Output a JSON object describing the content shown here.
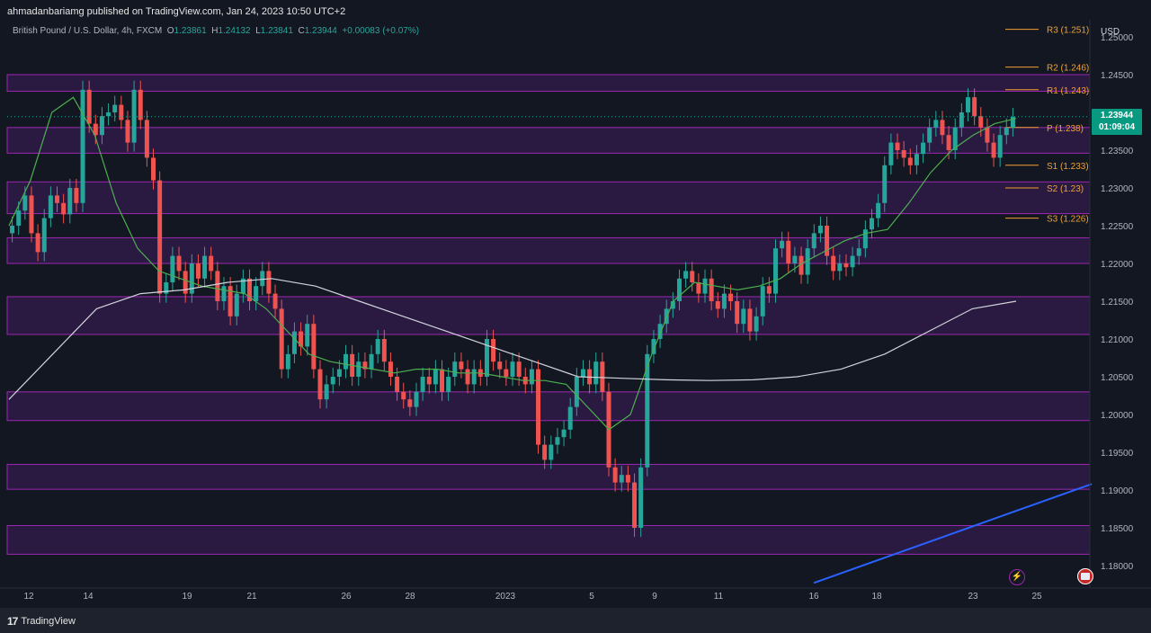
{
  "header": {
    "published_by": "ahmadanbariamg published on TradingView.com, Jan 24, 2023 10:50 UTC+2",
    "symbol": "British Pound / U.S. Dollar, 4h, FXCM",
    "o_label": "O",
    "o_value": "1.23861",
    "h_label": "H",
    "h_value": "1.24132",
    "l_label": "L",
    "l_value": "1.23841",
    "c_label": "C",
    "c_value": "1.23944",
    "change": "+0.00083 (+0.07%)"
  },
  "price_axis": {
    "currency": "USD",
    "last_price": "1.23944",
    "countdown": "01:09:04"
  },
  "footer": {
    "brand": "TradingView",
    "logo": "17"
  },
  "icons": {
    "alert": "bolt-icon",
    "flag": "uk-flag-icon"
  },
  "colors": {
    "background": "#131722",
    "bull": "#26a69a",
    "bear": "#ef5350",
    "zone_fill": "#2d1b45",
    "zone_border": "#9c27b0",
    "pivot": "#f0a030",
    "ma_fast": "#4caf50",
    "ma_slow": "#d1d4dc",
    "trendline": "#2962ff"
  },
  "chart_data": {
    "type": "candlestick",
    "title": "British Pound / U.S. Dollar, 4h, FXCM",
    "y_ticks": [
      "1.25000",
      "1.24500",
      "1.24000",
      "1.23500",
      "1.23000",
      "1.22500",
      "1.22000",
      "1.21500",
      "1.21000",
      "1.20500",
      "1.20000",
      "1.19500",
      "1.19000",
      "1.18500",
      "1.18000"
    ],
    "ylim": [
      1.1775,
      1.2515
    ],
    "x_ticks": [
      "12",
      "14",
      "19",
      "21",
      "26",
      "28",
      "2023",
      "5",
      "9",
      "11",
      "16",
      "18",
      "23",
      "25"
    ],
    "zones": [
      [
        1.2428,
        1.245
      ],
      [
        1.2346,
        1.238
      ],
      [
        1.2266,
        1.2308
      ],
      [
        1.22,
        1.2234
      ],
      [
        1.2106,
        1.2156
      ],
      [
        1.1992,
        1.203
      ],
      [
        1.1901,
        1.1934
      ],
      [
        1.1815,
        1.1853
      ]
    ],
    "pivots": [
      {
        "label": "R3 (1.251)",
        "value": 1.251
      },
      {
        "label": "R2 (1.246)",
        "value": 1.246
      },
      {
        "label": "R1 (1.243)",
        "value": 1.243
      },
      {
        "label": "P (1.238)",
        "value": 1.238
      },
      {
        "label": "S1 (1.233)",
        "value": 1.233
      },
      {
        "label": "S2 (1.23)",
        "value": 1.23
      },
      {
        "label": "S3 (1.226)",
        "value": 1.226
      }
    ],
    "close_series": [
      {
        "name": "GBPUSD 4h close (approx)",
        "values": [
          1.225,
          1.227,
          1.229,
          1.224,
          1.2215,
          1.226,
          1.229,
          1.228,
          1.2265,
          1.23,
          1.228,
          1.243,
          1.2385,
          1.237,
          1.2395,
          1.24,
          1.241,
          1.239,
          1.236,
          1.243,
          1.239,
          1.234,
          1.231,
          1.216,
          1.2175,
          1.221,
          1.219,
          1.216,
          1.22,
          1.218,
          1.221,
          1.219,
          1.215,
          1.217,
          1.213,
          1.216,
          1.218,
          1.215,
          1.217,
          1.219,
          1.216,
          1.214,
          1.206,
          1.208,
          1.211,
          1.209,
          1.212,
          1.206,
          1.202,
          1.204,
          1.205,
          1.206,
          1.208,
          1.205,
          1.207,
          1.206,
          1.208,
          1.21,
          1.207,
          1.205,
          1.203,
          1.202,
          1.201,
          1.203,
          1.205,
          1.204,
          1.206,
          1.203,
          1.205,
          1.207,
          1.206,
          1.204,
          1.206,
          1.205,
          1.21,
          1.207,
          1.206,
          1.205,
          1.207,
          1.205,
          1.204,
          1.206,
          1.196,
          1.194,
          1.196,
          1.197,
          1.198,
          1.201,
          1.205,
          1.206,
          1.204,
          1.207,
          1.203,
          1.193,
          1.191,
          1.192,
          1.191,
          1.185,
          1.193,
          1.208,
          1.21,
          1.212,
          1.214,
          1.215,
          1.218,
          1.219,
          1.2175,
          1.216,
          1.218,
          1.215,
          1.214,
          1.216,
          1.215,
          1.212,
          1.214,
          1.211,
          1.213,
          1.217,
          1.216,
          1.222,
          1.223,
          1.22,
          1.221,
          1.2185,
          1.222,
          1.224,
          1.225,
          1.221,
          1.219,
          1.22,
          1.2195,
          1.221,
          1.222,
          1.2245,
          1.226,
          1.228,
          1.233,
          1.236,
          1.235,
          1.234,
          1.233,
          1.2345,
          1.236,
          1.238,
          1.239,
          1.237,
          1.235,
          1.238,
          1.24,
          1.242,
          1.2395,
          1.238,
          1.236,
          1.234,
          1.237,
          1.238,
          1.2394
        ]
      },
      {
        "name": "MA fast (approx)",
        "values": [
          1.225,
          1.231,
          1.24,
          1.242,
          1.237,
          1.228,
          1.222,
          1.219,
          1.218,
          1.217,
          1.2165,
          1.216,
          1.214,
          1.211,
          1.208,
          1.207,
          1.2065,
          1.206,
          1.2055,
          1.206,
          1.206,
          1.2055,
          1.2055,
          1.205,
          1.2045,
          1.2045,
          1.204,
          1.201,
          1.198,
          1.2,
          1.208,
          1.215,
          1.2175,
          1.217,
          1.2165,
          1.217,
          1.218,
          1.22,
          1.2215,
          1.223,
          1.224,
          1.2245,
          1.228,
          1.232,
          1.235,
          1.237,
          1.2385,
          1.2392
        ]
      },
      {
        "name": "MA slow (approx)",
        "values": [
          1.202,
          1.208,
          1.214,
          1.216,
          1.2165,
          1.2175,
          1.218,
          1.217,
          1.215,
          1.213,
          1.211,
          1.209,
          1.207,
          1.205,
          1.2048,
          1.2046,
          1.2045,
          1.2046,
          1.205,
          1.206,
          1.208,
          1.211,
          1.214,
          1.215
        ]
      }
    ],
    "trendline": {
      "from": 1.1777,
      "to": 1.1908
    },
    "grid": false,
    "legend": "none"
  }
}
